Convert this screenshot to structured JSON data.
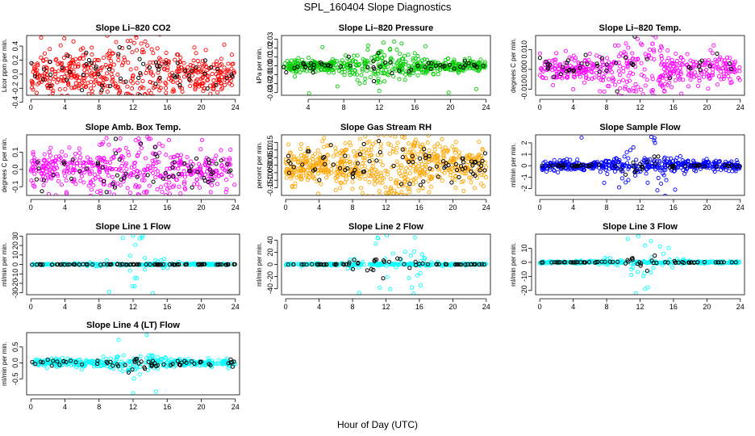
{
  "page": {
    "title": "SPL_160404  Slope Diagnostics",
    "xlabel": "Hour of Day (UTC)"
  },
  "chart_data": [
    {
      "type": "scatter",
      "title": "Slope Li–820 CO2",
      "ylabel": "Licor ppm per min.",
      "xlim": [
        -0.5,
        24.5
      ],
      "xticks": [
        0,
        4,
        8,
        12,
        16,
        20,
        24
      ],
      "ylim": [
        -0.3,
        0.55
      ],
      "yticks": [
        -0.4,
        -0.2,
        0.0,
        0.2,
        0.4
      ],
      "ytick_labels": [
        "-0.4",
        "-0.2",
        "0.0",
        "0.2",
        "0.4"
      ],
      "main_color": "#ff0000",
      "highlight_color": "#000000",
      "n_main": 520,
      "n_highlight": 70,
      "spread": 0.14,
      "bump_mult": 1.0,
      "outliers": [
        [
          1.2,
          0.52
        ],
        [
          6.8,
          -0.28
        ],
        [
          14.1,
          -0.27
        ],
        [
          9.0,
          -0.25
        ],
        [
          22.7,
          0.42
        ],
        [
          3.5,
          0.41
        ],
        [
          16.8,
          -0.24
        ],
        [
          19.2,
          0.38
        ]
      ]
    },
    {
      "type": "scatter",
      "title": "Slope Li–820 Pressure",
      "ylabel": "kPa per min.",
      "xlim": [
        1.0,
        24.5
      ],
      "xticks": [
        4,
        8,
        12,
        16,
        20,
        24
      ],
      "ylim": [
        -0.033,
        0.034
      ],
      "yticks": [
        -0.03,
        -0.02,
        -0.01,
        0.0,
        0.01,
        0.02,
        0.03
      ],
      "ytick_labels": [
        "-0.03",
        "-0.02",
        "-0.01",
        "0.00",
        "0.01",
        "0.02",
        "0.03"
      ],
      "main_color": "#00cc00",
      "highlight_color": "#000000",
      "n_main": 520,
      "n_highlight": 55,
      "spread": 0.0035,
      "bump_mult": 1.0,
      "outliers": [
        [
          2.5,
          -0.012
        ],
        [
          4.1,
          -0.031
        ],
        [
          7.3,
          -0.023
        ],
        [
          9.8,
          -0.02
        ],
        [
          12.0,
          -0.028
        ],
        [
          14.5,
          0.025
        ],
        [
          17.2,
          0.022
        ],
        [
          19.8,
          -0.03
        ],
        [
          22.9,
          -0.026
        ],
        [
          5.6,
          0.021
        ],
        [
          10.7,
          0.018
        ]
      ]
    },
    {
      "type": "scatter",
      "title": "Slope Li–820 Temp.",
      "ylabel": "degrees C per min.",
      "xlim": [
        -0.5,
        24.5
      ],
      "xticks": [
        0,
        4,
        8,
        12,
        16,
        20,
        24
      ],
      "ylim": [
        -0.013,
        0.017
      ],
      "yticks": [
        -0.01,
        0.0,
        0.01
      ],
      "ytick_labels": [
        "-0.010",
        "0.000",
        "0.010"
      ],
      "main_color": "#ff00ff",
      "highlight_color": "#000000",
      "n_main": 450,
      "n_highlight": 45,
      "spread": 0.0032,
      "bump_mult": 1.0,
      "outliers": [
        [
          7.2,
          -0.011
        ],
        [
          12.1,
          0.013
        ],
        [
          9.0,
          0.012
        ],
        [
          14.6,
          0.011
        ],
        [
          20.8,
          0.012
        ],
        [
          4.0,
          -0.01
        ]
      ]
    },
    {
      "type": "scatter",
      "title": "Slope Amb. Box Temp.",
      "ylabel": "degrees C per min.",
      "xlim": [
        -0.5,
        24.5
      ],
      "xticks": [
        0,
        4,
        8,
        12,
        16,
        20,
        24
      ],
      "ylim": [
        -0.15,
        0.2
      ],
      "yticks": [
        -0.1,
        0.0,
        0.1
      ],
      "ytick_labels": [
        "-0.1",
        "0.0",
        "0.1"
      ],
      "main_color": "#ff00ff",
      "highlight_color": "#000000",
      "n_main": 480,
      "n_highlight": 65,
      "spread": 0.055,
      "bump_mult": 1.0,
      "outliers": [
        [
          10.5,
          0.18
        ],
        [
          16.3,
          -0.14
        ],
        [
          4.2,
          -0.14
        ],
        [
          20.1,
          0.17
        ],
        [
          7.8,
          -0.13
        ]
      ]
    },
    {
      "type": "scatter",
      "title": "Slope Gas Stream RH",
      "ylabel": "percent per min.",
      "xlim": [
        -0.5,
        24.5
      ],
      "xticks": [
        0,
        4,
        8,
        12,
        16,
        20,
        24
      ],
      "ylim": [
        -0.2,
        0.2
      ],
      "yticks": [
        -0.15,
        -0.1,
        -0.05,
        0.0,
        0.05,
        0.1,
        0.15
      ],
      "ytick_labels": [
        "-0.15",
        "-0.10",
        "-0.05",
        "0.00",
        "0.05",
        "0.10",
        "0.15"
      ],
      "main_color": "#ffa500",
      "highlight_color": "#000000",
      "n_main": 650,
      "n_highlight": 80,
      "spread": 0.065,
      "bump_mult": 1.0,
      "outliers": [
        [
          4.6,
          0.18
        ],
        [
          3.9,
          -0.19
        ],
        [
          12.4,
          -0.18
        ],
        [
          18.7,
          0.17
        ],
        [
          21.3,
          -0.17
        ]
      ]
    },
    {
      "type": "scatter",
      "title": "Slope Sample Flow",
      "ylabel": "ml/min per min.",
      "xlim": [
        -0.5,
        24.5
      ],
      "xticks": [
        0,
        4,
        8,
        12,
        16,
        20,
        24
      ],
      "ylim": [
        -2.6,
        2.7
      ],
      "yticks": [
        -2,
        -1,
        0,
        1,
        2
      ],
      "ytick_labels": [
        "-2",
        "-1",
        "0",
        "1",
        "2"
      ],
      "main_color": "#0000ff",
      "highlight_color": "#000000",
      "n_main": 480,
      "n_highlight": 55,
      "spread": 0.2,
      "bump_mult": 4.0,
      "outliers": [
        [
          5.0,
          2.45
        ],
        [
          9.5,
          -1.9
        ],
        [
          13.8,
          2.0
        ],
        [
          16.2,
          -2.1
        ],
        [
          11.2,
          1.6
        ],
        [
          7.7,
          -1.5
        ]
      ]
    },
    {
      "type": "scatter",
      "title": "Slope Line 1 Flow",
      "ylabel": "ml/min per min.",
      "xlim": [
        -0.5,
        24.5
      ],
      "xticks": [
        0,
        4,
        8,
        12,
        16,
        20,
        24
      ],
      "ylim": [
        -32,
        32
      ],
      "yticks": [
        -30,
        -20,
        -10,
        0,
        10,
        20,
        30
      ],
      "ytick_labels": [
        "-30",
        "-20",
        "-10",
        "0",
        "10",
        "20",
        "30"
      ],
      "main_color": "#00ffff",
      "highlight_color": "#000000",
      "n_main": 300,
      "n_highlight": 90,
      "spread": 0.4,
      "bump_mult": 28.0,
      "highlight_flat": true,
      "outliers": [
        [
          12.0,
          30.5
        ],
        [
          9.2,
          -29
        ],
        [
          14.3,
          -30.5
        ],
        [
          10.8,
          28
        ]
      ]
    },
    {
      "type": "scatter",
      "title": "Slope Line 2 Flow",
      "ylabel": "ml/min per min.",
      "xlim": [
        -0.5,
        24.5
      ],
      "xticks": [
        0,
        4,
        8,
        12,
        16,
        20,
        24
      ],
      "ylim": [
        -50,
        50
      ],
      "yticks": [
        -40,
        -20,
        0,
        20,
        40
      ],
      "ytick_labels": [
        "-40",
        "-20",
        "0",
        "20",
        "40"
      ],
      "main_color": "#00ffff",
      "highlight_color": "#000000",
      "n_main": 320,
      "n_highlight": 70,
      "spread": 0.7,
      "bump_mult": 45.0,
      "outliers": [
        [
          12.1,
          48
        ],
        [
          8.8,
          -47
        ],
        [
          15.3,
          -48
        ],
        [
          11.0,
          44
        ]
      ]
    },
    {
      "type": "scatter",
      "title": "Slope Line 3 Flow",
      "ylabel": "ml/min per min.",
      "xlim": [
        -0.5,
        24.5
      ],
      "xticks": [
        0,
        4,
        8,
        12,
        16,
        20,
        24
      ],
      "ylim": [
        -23,
        20
      ],
      "yticks": [
        -20,
        -10,
        0,
        10
      ],
      "ytick_labels": [
        "-20",
        "-10",
        "0",
        "10"
      ],
      "main_color": "#00ffff",
      "highlight_color": "#000000",
      "n_main": 330,
      "n_highlight": 70,
      "spread": 0.35,
      "bump_mult": 16.0,
      "outliers": [
        [
          11.8,
          18.5
        ],
        [
          11.5,
          -22
        ],
        [
          13.3,
          15
        ],
        [
          12.6,
          -19
        ]
      ]
    },
    {
      "type": "scatter",
      "title": "Slope Line 4 (LT) Flow",
      "ylabel": "ml/min per min.",
      "xlim": [
        -0.5,
        24.5
      ],
      "xticks": [
        0,
        4,
        8,
        12,
        16,
        20,
        24
      ],
      "ylim": [
        -1.0,
        0.95
      ],
      "yticks": [
        -0.5,
        0.0,
        0.5
      ],
      "ytick_labels": [
        "-0.5",
        "0.0",
        "0.5"
      ],
      "main_color": "#00ffff",
      "highlight_color": "#000000",
      "n_main": 380,
      "n_highlight": 65,
      "spread": 0.06,
      "bump_mult": 0.7,
      "outliers": [
        [
          13.6,
          0.88
        ],
        [
          12.0,
          -0.95
        ],
        [
          14.7,
          -0.9
        ],
        [
          10.3,
          0.72
        ]
      ]
    }
  ]
}
